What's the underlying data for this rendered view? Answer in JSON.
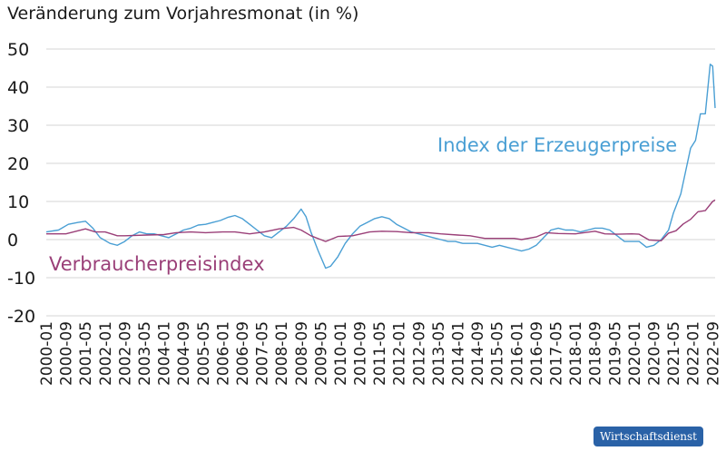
{
  "title": "Veränderung zum Vorjahresmonat (in %)",
  "brand": "Wirtschaftsdienst",
  "chart_data": {
    "type": "line",
    "ylim": [
      -20,
      50
    ],
    "yticks": [
      -20,
      -10,
      0,
      10,
      20,
      30,
      40,
      50
    ],
    "grid": "horizontal",
    "x_tick_labels": [
      "2000-01",
      "2000-09",
      "2001-05",
      "2002-01",
      "2002-09",
      "2003-05",
      "2004-01",
      "2004-09",
      "2005-05",
      "2006-01",
      "2006-09",
      "2007-05",
      "2008-01",
      "2008-09",
      "2009-05",
      "2010-01",
      "2010-09",
      "2011-05",
      "2012-01",
      "2012-09",
      "2013-05",
      "2014-01",
      "2014-09",
      "2015-05",
      "2016-01",
      "2016-09",
      "2017-05",
      "2018-01",
      "2018-09",
      "2019-05",
      "2020-01",
      "2020-09",
      "2021-05",
      "2022-01",
      "2022-09"
    ],
    "series": [
      {
        "name": "Index der Erzeugerpreise",
        "color": "#4a9fd4",
        "points": [
          [
            "2000-01",
            2.0
          ],
          [
            "2000-06",
            2.5
          ],
          [
            "2000-10",
            4.0
          ],
          [
            "2001-02",
            4.5
          ],
          [
            "2001-05",
            4.8
          ],
          [
            "2001-08",
            3.0
          ],
          [
            "2001-11",
            0.5
          ],
          [
            "2002-03",
            -1.0
          ],
          [
            "2002-06",
            -1.5
          ],
          [
            "2002-09",
            -0.5
          ],
          [
            "2002-12",
            1.0
          ],
          [
            "2003-03",
            2.0
          ],
          [
            "2003-06",
            1.5
          ],
          [
            "2003-09",
            1.5
          ],
          [
            "2003-12",
            1.0
          ],
          [
            "2004-03",
            0.5
          ],
          [
            "2004-06",
            1.5
          ],
          [
            "2004-09",
            2.5
          ],
          [
            "2004-12",
            3.0
          ],
          [
            "2005-03",
            3.8
          ],
          [
            "2005-06",
            4.0
          ],
          [
            "2005-09",
            4.5
          ],
          [
            "2005-12",
            5.0
          ],
          [
            "2006-03",
            5.8
          ],
          [
            "2006-06",
            6.3
          ],
          [
            "2006-09",
            5.5
          ],
          [
            "2006-12",
            4.0
          ],
          [
            "2007-03",
            2.5
          ],
          [
            "2007-06",
            1.0
          ],
          [
            "2007-09",
            0.5
          ],
          [
            "2007-12",
            2.0
          ],
          [
            "2008-03",
            3.5
          ],
          [
            "2008-06",
            5.5
          ],
          [
            "2008-09",
            8.0
          ],
          [
            "2008-11",
            6.0
          ],
          [
            "2009-01",
            2.0
          ],
          [
            "2009-04",
            -3.0
          ],
          [
            "2009-07",
            -7.5
          ],
          [
            "2009-09",
            -7.0
          ],
          [
            "2009-12",
            -4.5
          ],
          [
            "2010-03",
            -1.0
          ],
          [
            "2010-06",
            1.5
          ],
          [
            "2010-09",
            3.5
          ],
          [
            "2010-12",
            4.5
          ],
          [
            "2011-03",
            5.5
          ],
          [
            "2011-06",
            6.0
          ],
          [
            "2011-09",
            5.5
          ],
          [
            "2011-12",
            4.0
          ],
          [
            "2012-03",
            3.0
          ],
          [
            "2012-06",
            2.0
          ],
          [
            "2012-09",
            1.5
          ],
          [
            "2012-12",
            1.0
          ],
          [
            "2013-03",
            0.5
          ],
          [
            "2013-06",
            0.0
          ],
          [
            "2013-09",
            -0.5
          ],
          [
            "2013-12",
            -0.5
          ],
          [
            "2014-03",
            -1.0
          ],
          [
            "2014-06",
            -1.0
          ],
          [
            "2014-09",
            -1.0
          ],
          [
            "2014-12",
            -1.5
          ],
          [
            "2015-03",
            -2.0
          ],
          [
            "2015-06",
            -1.5
          ],
          [
            "2015-09",
            -2.0
          ],
          [
            "2015-12",
            -2.5
          ],
          [
            "2016-03",
            -3.0
          ],
          [
            "2016-06",
            -2.5
          ],
          [
            "2016-09",
            -1.5
          ],
          [
            "2016-12",
            0.5
          ],
          [
            "2017-03",
            2.5
          ],
          [
            "2017-06",
            3.0
          ],
          [
            "2017-09",
            2.5
          ],
          [
            "2017-12",
            2.5
          ],
          [
            "2018-03",
            2.0
          ],
          [
            "2018-06",
            2.5
          ],
          [
            "2018-09",
            3.0
          ],
          [
            "2018-12",
            3.0
          ],
          [
            "2019-03",
            2.5
          ],
          [
            "2019-06",
            1.0
          ],
          [
            "2019-09",
            -0.5
          ],
          [
            "2019-12",
            -0.5
          ],
          [
            "2020-03",
            -0.5
          ],
          [
            "2020-06",
            -2.0
          ],
          [
            "2020-09",
            -1.5
          ],
          [
            "2020-12",
            0.0
          ],
          [
            "2021-03",
            2.5
          ],
          [
            "2021-05",
            7.0
          ],
          [
            "2021-08",
            12.0
          ],
          [
            "2021-10",
            18.0
          ],
          [
            "2021-12",
            24.0
          ],
          [
            "2022-02",
            26.0
          ],
          [
            "2022-04",
            33.0
          ],
          [
            "2022-06",
            33.0
          ],
          [
            "2022-08",
            46.0
          ],
          [
            "2022-09",
            45.5
          ],
          [
            "2022-10",
            34.5
          ]
        ]
      },
      {
        "name": "Verbraucherpreisindex",
        "color": "#9a3f78",
        "points": [
          [
            "2000-01",
            1.5
          ],
          [
            "2000-09",
            1.5
          ],
          [
            "2001-05",
            2.8
          ],
          [
            "2001-09",
            2.0
          ],
          [
            "2002-01",
            2.0
          ],
          [
            "2002-06",
            1.0
          ],
          [
            "2002-09",
            1.0
          ],
          [
            "2003-06",
            1.2
          ],
          [
            "2004-01",
            1.3
          ],
          [
            "2004-06",
            1.8
          ],
          [
            "2004-12",
            2.0
          ],
          [
            "2005-06",
            1.8
          ],
          [
            "2006-01",
            2.0
          ],
          [
            "2006-06",
            2.0
          ],
          [
            "2006-12",
            1.5
          ],
          [
            "2007-06",
            2.0
          ],
          [
            "2007-12",
            2.8
          ],
          [
            "2008-06",
            3.2
          ],
          [
            "2008-09",
            2.5
          ],
          [
            "2009-01",
            1.0
          ],
          [
            "2009-05",
            0.0
          ],
          [
            "2009-07",
            -0.5
          ],
          [
            "2009-12",
            0.8
          ],
          [
            "2010-06",
            1.0
          ],
          [
            "2011-01",
            2.0
          ],
          [
            "2011-06",
            2.2
          ],
          [
            "2011-12",
            2.1
          ],
          [
            "2012-06",
            1.8
          ],
          [
            "2013-01",
            1.8
          ],
          [
            "2013-06",
            1.5
          ],
          [
            "2014-01",
            1.2
          ],
          [
            "2014-06",
            1.0
          ],
          [
            "2014-12",
            0.3
          ],
          [
            "2015-06",
            0.3
          ],
          [
            "2015-12",
            0.3
          ],
          [
            "2016-03",
            0.0
          ],
          [
            "2016-09",
            0.7
          ],
          [
            "2017-01",
            1.8
          ],
          [
            "2017-06",
            1.6
          ],
          [
            "2018-01",
            1.5
          ],
          [
            "2018-09",
            2.2
          ],
          [
            "2019-01",
            1.5
          ],
          [
            "2019-06",
            1.4
          ],
          [
            "2019-12",
            1.5
          ],
          [
            "2020-03",
            1.4
          ],
          [
            "2020-07",
            -0.1
          ],
          [
            "2020-12",
            -0.3
          ],
          [
            "2021-03",
            1.7
          ],
          [
            "2021-06",
            2.3
          ],
          [
            "2021-09",
            4.1
          ],
          [
            "2021-12",
            5.3
          ],
          [
            "2022-03",
            7.3
          ],
          [
            "2022-06",
            7.6
          ],
          [
            "2022-09",
            10.0
          ],
          [
            "2022-10",
            10.4
          ]
        ]
      }
    ],
    "annotations": [
      {
        "text": "Index der Erzeugerpreise",
        "series": "Index der Erzeugerpreise"
      },
      {
        "text": "Verbraucherpreisindex",
        "series": "Verbraucherpreisindex"
      }
    ]
  }
}
